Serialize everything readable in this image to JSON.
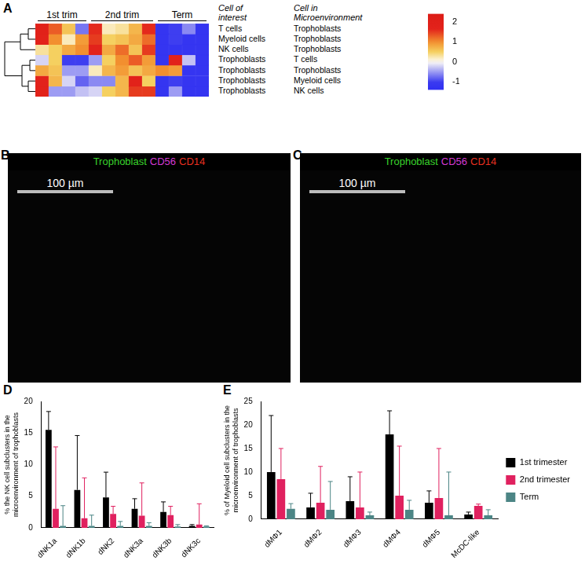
{
  "chart_data": [
    {
      "panel": "A",
      "type": "heatmap",
      "column_groups": [
        "1st trim",
        "1st trim",
        "1st trim",
        "1st trim",
        "2nd trim",
        "2nd trim",
        "2nd trim",
        "2nd trim",
        "2nd trim",
        "Term",
        "Term",
        "Term",
        "Term"
      ],
      "row_headers": [
        "Cell of interest",
        "Cell in Microenvironment"
      ],
      "rows": [
        {
          "cell_of_interest": "T cells",
          "cell_in_microenvironment": "Trophoblasts",
          "values": [
            1.9,
            1.3,
            0.6,
            -0.7,
            1.6,
            0.2,
            0.3,
            0.7,
            1.6,
            -1.2,
            -1.0,
            -0.6,
            -1.2
          ]
        },
        {
          "cell_of_interest": "Myeloid cells",
          "cell_in_microenvironment": "Trophoblasts",
          "values": [
            1.8,
            1.0,
            0.2,
            0.9,
            1.5,
            0.5,
            0.6,
            0.8,
            1.2,
            -1.2,
            -1.0,
            -1.2,
            -1.2
          ]
        },
        {
          "cell_of_interest": "NK cells",
          "cell_in_microenvironment": "Trophoblasts",
          "values": [
            0.3,
            0.5,
            0.8,
            1.0,
            1.7,
            0.8,
            1.2,
            0.6,
            1.5,
            -1.2,
            -1.2,
            -1.2,
            -1.2
          ]
        },
        {
          "cell_of_interest": "Trophoblasts",
          "cell_in_microenvironment": "T cells",
          "values": [
            -0.2,
            0.5,
            -1.0,
            -1.0,
            -0.5,
            0.5,
            1.0,
            1.3,
            0.9,
            -1.2,
            1.8,
            -0.3,
            -1.2
          ]
        },
        {
          "cell_of_interest": "Trophoblasts",
          "cell_in_microenvironment": "Trophoblasts",
          "values": [
            0.8,
            0.6,
            -0.5,
            -0.5,
            0.2,
            0.7,
            0.9,
            0.6,
            0.8,
            1.0,
            0.9,
            -1.2,
            -1.2
          ]
        },
        {
          "cell_of_interest": "Trophoblasts",
          "cell_in_microenvironment": "Myeloid cells",
          "values": [
            1.7,
            0.7,
            -0.2,
            -0.8,
            -0.6,
            -0.6,
            0.7,
            1.8,
            0.5,
            -1.2,
            -1.0,
            -1.2,
            -1.2
          ]
        },
        {
          "cell_of_interest": "Trophoblasts",
          "cell_in_microenvironment": "NK cells",
          "values": [
            1.8,
            -0.5,
            -0.5,
            -0.3,
            -0.2,
            0.5,
            0.7,
            1.5,
            1.5,
            -1.2,
            -0.5,
            -1.2,
            -1.2
          ]
        }
      ],
      "colorbar": {
        "range": [
          -1.4,
          2.4
        ],
        "ticks": [
          2,
          1,
          0,
          -1
        ]
      }
    },
    {
      "panel": "D",
      "type": "bar",
      "categories": [
        "dNK1a",
        "dNK1b",
        "dNK2",
        "dNK3a",
        "dNK3b",
        "dNK3c"
      ],
      "ylabel": [
        "% the NK cell subclusters in the",
        "microenvironment of trophoblasts"
      ],
      "ylim": [
        0,
        20
      ],
      "yticks": [
        0,
        5,
        10,
        15,
        20
      ],
      "grid": false,
      "series": [
        {
          "name": "1st trimester",
          "color": "#000000",
          "values": [
            15.5,
            6.0,
            4.8,
            3.0,
            2.5,
            0.3
          ],
          "errors": [
            2.9,
            8.6,
            4.0,
            1.6,
            1.6,
            0.2
          ]
        },
        {
          "name": "2nd trimester",
          "color": "#e0215f",
          "values": [
            3.0,
            1.5,
            2.2,
            1.9,
            2.0,
            0.5
          ],
          "errors": [
            9.8,
            6.4,
            1.2,
            5.2,
            1.4,
            3.3
          ]
        },
        {
          "name": "Term",
          "color": "#4c8585",
          "values": [
            0.3,
            0.3,
            0.3,
            0.3,
            0.2,
            0.2
          ],
          "errors": [
            3.2,
            1.7,
            0.7,
            0.5,
            0.3,
            0.1
          ]
        }
      ]
    },
    {
      "panel": "E",
      "type": "bar",
      "categories": [
        "dMΦ1",
        "dMΦ2",
        "dMΦ3",
        "dMΦ4",
        "dMΦ5",
        "McDC-like"
      ],
      "ylabel": [
        "% of Myeloid cell subclusters in the",
        "microenvironment of trophoblasts"
      ],
      "ylim": [
        0,
        25
      ],
      "yticks": [
        0,
        5,
        10,
        15,
        20,
        25
      ],
      "grid": false,
      "legend": "right",
      "series": [
        {
          "name": "1st trimester",
          "color": "#000000",
          "values": [
            10.0,
            2.5,
            3.8,
            18.0,
            3.5,
            1.0
          ],
          "errors": [
            12.0,
            3.0,
            5.2,
            5.0,
            2.5,
            0.5
          ]
        },
        {
          "name": "2nd trimester",
          "color": "#e0215f",
          "values": [
            8.5,
            3.5,
            2.5,
            5.0,
            4.5,
            2.8
          ],
          "errors": [
            6.5,
            7.7,
            7.5,
            10.5,
            10.5,
            0.4
          ]
        },
        {
          "name": "Term",
          "color": "#4c8585",
          "values": [
            2.2,
            2.0,
            0.8,
            2.0,
            0.8,
            0.8
          ],
          "errors": [
            1.1,
            6.0,
            0.7,
            2.0,
            9.2,
            1.2
          ]
        }
      ]
    }
  ],
  "images": [
    {
      "panel": "B",
      "channels": [
        {
          "name": "Trophoblast",
          "color": "#39d32c"
        },
        {
          "name": "CD56",
          "color": "#d43ad4"
        },
        {
          "name": "CD14",
          "color": "#e83020"
        }
      ],
      "scale_bar": "100 µm"
    },
    {
      "panel": "C",
      "channels": [
        {
          "name": "Trophoblast",
          "color": "#39d32c"
        },
        {
          "name": "CD56",
          "color": "#d43ad4"
        },
        {
          "name": "CD14",
          "color": "#e83020"
        }
      ],
      "scale_bar": "100 µm"
    }
  ]
}
